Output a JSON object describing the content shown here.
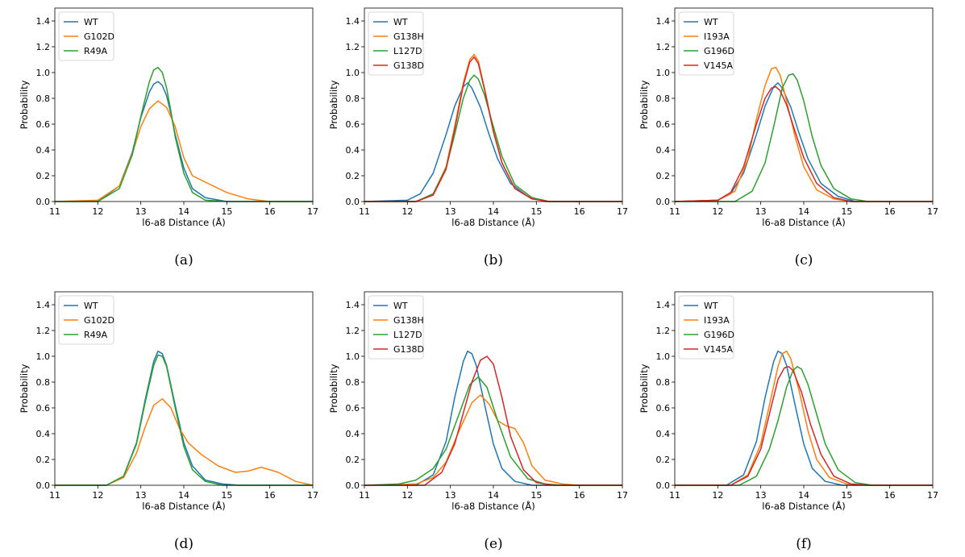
{
  "chart_data": [
    {
      "type": "line",
      "caption": "(a)",
      "xlabel": "l6-a8 Distance (Å)",
      "ylabel": "Probability",
      "xlim": [
        11,
        17
      ],
      "ylim": [
        0,
        1.5
      ],
      "xticks": [
        "11",
        "12",
        "13",
        "14",
        "15",
        "16",
        "17"
      ],
      "yticks": [
        "0.0",
        "0.2",
        "0.4",
        "0.6",
        "0.8",
        "1.0",
        "1.2",
        "1.4"
      ],
      "legend_position": "top-left",
      "series": [
        {
          "name": "WT",
          "color": "#1f77b4",
          "x": [
            11,
            12,
            12.5,
            12.8,
            13.0,
            13.2,
            13.3,
            13.4,
            13.5,
            13.6,
            13.7,
            13.8,
            14.0,
            14.2,
            14.5,
            15.0,
            17
          ],
          "y": [
            0,
            0.0,
            0.12,
            0.38,
            0.65,
            0.85,
            0.91,
            0.93,
            0.9,
            0.82,
            0.68,
            0.52,
            0.26,
            0.1,
            0.03,
            0.0,
            0
          ]
        },
        {
          "name": "G102D",
          "color": "#ff7f0e",
          "x": [
            11,
            12,
            12.5,
            12.8,
            13.0,
            13.2,
            13.4,
            13.6,
            13.8,
            14.0,
            14.2,
            14.5,
            15.0,
            15.5,
            16,
            17
          ],
          "y": [
            0,
            0.01,
            0.12,
            0.37,
            0.58,
            0.72,
            0.78,
            0.73,
            0.58,
            0.34,
            0.2,
            0.15,
            0.07,
            0.02,
            0.0,
            0
          ]
        },
        {
          "name": "R49A",
          "color": "#2ca02c",
          "x": [
            11,
            12,
            12.5,
            12.8,
            13.0,
            13.2,
            13.3,
            13.4,
            13.5,
            13.6,
            13.7,
            13.8,
            14.0,
            14.2,
            14.5,
            15.0,
            17
          ],
          "y": [
            0,
            0.0,
            0.1,
            0.36,
            0.66,
            0.93,
            1.02,
            1.04,
            1.0,
            0.88,
            0.7,
            0.5,
            0.22,
            0.07,
            0.01,
            0.0,
            0
          ]
        }
      ]
    },
    {
      "type": "line",
      "caption": "(b)",
      "xlabel": "l6-a8 Distance (Å)",
      "ylabel": "Probability",
      "xlim": [
        11,
        17
      ],
      "ylim": [
        0,
        1.5
      ],
      "xticks": [
        "11",
        "12",
        "13",
        "14",
        "15",
        "16",
        "17"
      ],
      "yticks": [
        "0.0",
        "0.2",
        "0.4",
        "0.6",
        "0.8",
        "1.0",
        "1.2",
        "1.4"
      ],
      "legend_position": "top-left",
      "series": [
        {
          "name": "WT",
          "color": "#1f77b4",
          "x": [
            11,
            12,
            12.3,
            12.6,
            12.9,
            13.1,
            13.3,
            13.4,
            13.5,
            13.7,
            13.9,
            14.1,
            14.4,
            14.8,
            15.2,
            17
          ],
          "y": [
            0,
            0.01,
            0.06,
            0.22,
            0.52,
            0.74,
            0.89,
            0.92,
            0.88,
            0.73,
            0.52,
            0.33,
            0.14,
            0.04,
            0.0,
            0
          ]
        },
        {
          "name": "G138H",
          "color": "#ff7f0e",
          "x": [
            11,
            12.2,
            12.6,
            12.9,
            13.1,
            13.3,
            13.45,
            13.55,
            13.65,
            13.8,
            14.0,
            14.2,
            14.5,
            14.9,
            15.3,
            17
          ],
          "y": [
            0,
            0.0,
            0.06,
            0.27,
            0.58,
            0.92,
            1.1,
            1.14,
            1.09,
            0.87,
            0.55,
            0.3,
            0.1,
            0.02,
            0.0,
            0
          ]
        },
        {
          "name": "L127D",
          "color": "#2ca02c",
          "x": [
            11,
            12.2,
            12.6,
            12.9,
            13.1,
            13.3,
            13.45,
            13.55,
            13.65,
            13.8,
            14.0,
            14.2,
            14.5,
            14.9,
            15.3,
            17
          ],
          "y": [
            0,
            0.0,
            0.06,
            0.26,
            0.52,
            0.8,
            0.94,
            0.98,
            0.95,
            0.82,
            0.58,
            0.35,
            0.13,
            0.03,
            0.0,
            0
          ]
        },
        {
          "name": "G138D",
          "color": "#d62728",
          "x": [
            11,
            12.2,
            12.6,
            12.9,
            13.1,
            13.3,
            13.45,
            13.55,
            13.65,
            13.8,
            14.0,
            14.2,
            14.5,
            14.9,
            15.3,
            17
          ],
          "y": [
            0,
            0.0,
            0.05,
            0.25,
            0.56,
            0.9,
            1.08,
            1.12,
            1.07,
            0.86,
            0.54,
            0.3,
            0.1,
            0.02,
            0.0,
            0
          ]
        }
      ]
    },
    {
      "type": "line",
      "caption": "(c)",
      "xlabel": "l6-a8 Distance (Å)",
      "ylabel": "Probability",
      "xlim": [
        11,
        17
      ],
      "ylim": [
        0,
        1.5
      ],
      "xticks": [
        "11",
        "12",
        "13",
        "14",
        "15",
        "16",
        "17"
      ],
      "yticks": [
        "0.0",
        "0.2",
        "0.4",
        "0.6",
        "0.8",
        "1.0",
        "1.2",
        "1.4"
      ],
      "legend_position": "top-left",
      "series": [
        {
          "name": "WT",
          "color": "#1f77b4",
          "x": [
            11,
            12,
            12.3,
            12.6,
            12.9,
            13.1,
            13.3,
            13.4,
            13.5,
            13.7,
            13.9,
            14.1,
            14.4,
            14.8,
            15.2,
            17
          ],
          "y": [
            0,
            0.01,
            0.06,
            0.22,
            0.52,
            0.74,
            0.89,
            0.92,
            0.88,
            0.73,
            0.52,
            0.33,
            0.14,
            0.04,
            0.0,
            0
          ]
        },
        {
          "name": "I193A",
          "color": "#ff7f0e",
          "x": [
            11,
            12,
            12.4,
            12.7,
            12.9,
            13.1,
            13.25,
            13.35,
            13.45,
            13.6,
            13.8,
            14.0,
            14.3,
            14.7,
            15.1,
            17
          ],
          "y": [
            0,
            0.01,
            0.08,
            0.33,
            0.64,
            0.9,
            1.03,
            1.04,
            0.98,
            0.78,
            0.5,
            0.27,
            0.09,
            0.02,
            0.0,
            0
          ]
        },
        {
          "name": "G196D",
          "color": "#2ca02c",
          "x": [
            11,
            12.4,
            12.8,
            13.1,
            13.3,
            13.5,
            13.65,
            13.75,
            13.85,
            14.0,
            14.2,
            14.4,
            14.7,
            15.1,
            15.5,
            17
          ],
          "y": [
            0,
            0.0,
            0.08,
            0.3,
            0.58,
            0.88,
            0.98,
            0.99,
            0.94,
            0.78,
            0.5,
            0.28,
            0.1,
            0.02,
            0.0,
            0
          ]
        },
        {
          "name": "V145A",
          "color": "#d62728",
          "x": [
            11,
            12,
            12.3,
            12.6,
            12.9,
            13.1,
            13.25,
            13.35,
            13.45,
            13.6,
            13.8,
            14.0,
            14.3,
            14.7,
            15.1,
            17
          ],
          "y": [
            0,
            0.01,
            0.07,
            0.27,
            0.6,
            0.8,
            0.88,
            0.89,
            0.86,
            0.75,
            0.54,
            0.34,
            0.14,
            0.03,
            0.0,
            0
          ]
        }
      ]
    },
    {
      "type": "line",
      "caption": "(d)",
      "xlabel": "l6-a8 Distance (Å)",
      "ylabel": "Probability",
      "xlim": [
        11,
        17
      ],
      "ylim": [
        0,
        1.5
      ],
      "xticks": [
        "11",
        "12",
        "13",
        "14",
        "15",
        "16",
        "17"
      ],
      "yticks": [
        "0.0",
        "0.2",
        "0.4",
        "0.6",
        "0.8",
        "1.0",
        "1.2",
        "1.4"
      ],
      "legend_position": "top-left",
      "series": [
        {
          "name": "WT",
          "color": "#1f77b4",
          "x": [
            11,
            12.2,
            12.6,
            12.9,
            13.1,
            13.3,
            13.4,
            13.5,
            13.6,
            13.8,
            14.0,
            14.2,
            14.5,
            14.9,
            15.3,
            17
          ],
          "y": [
            0,
            0.0,
            0.07,
            0.33,
            0.66,
            0.96,
            1.04,
            1.02,
            0.93,
            0.62,
            0.33,
            0.15,
            0.04,
            0.01,
            0.0,
            0
          ]
        },
        {
          "name": "G102D",
          "color": "#ff7f0e",
          "x": [
            11,
            12.2,
            12.6,
            12.9,
            13.1,
            13.3,
            13.5,
            13.7,
            13.9,
            14.1,
            14.4,
            14.8,
            15.2,
            15.5,
            15.8,
            16.2,
            16.6,
            17
          ],
          "y": [
            0,
            0.0,
            0.06,
            0.25,
            0.45,
            0.62,
            0.67,
            0.6,
            0.44,
            0.33,
            0.24,
            0.15,
            0.1,
            0.11,
            0.14,
            0.1,
            0.03,
            0.0
          ]
        },
        {
          "name": "R49A",
          "color": "#2ca02c",
          "x": [
            11,
            12.2,
            12.6,
            12.9,
            13.1,
            13.3,
            13.4,
            13.5,
            13.6,
            13.8,
            14.0,
            14.2,
            14.5,
            14.9,
            15.3,
            17
          ],
          "y": [
            0,
            0.0,
            0.07,
            0.32,
            0.64,
            0.93,
            1.01,
            1.0,
            0.92,
            0.6,
            0.3,
            0.12,
            0.03,
            0.0,
            0.0,
            0
          ]
        }
      ]
    },
    {
      "type": "line",
      "caption": "(e)",
      "xlabel": "l6-a8 Distance (Å)",
      "ylabel": "Probability",
      "xlim": [
        11,
        17
      ],
      "ylim": [
        0,
        1.5
      ],
      "xticks": [
        "11",
        "12",
        "13",
        "14",
        "15",
        "16",
        "17"
      ],
      "yticks": [
        "0.0",
        "0.2",
        "0.4",
        "0.6",
        "0.8",
        "1.0",
        "1.2",
        "1.4"
      ],
      "legend_position": "top-left",
      "series": [
        {
          "name": "WT",
          "color": "#1f77b4",
          "x": [
            11,
            12.2,
            12.6,
            12.9,
            13.1,
            13.3,
            13.4,
            13.5,
            13.6,
            13.8,
            14.0,
            14.2,
            14.5,
            14.9,
            15.3,
            17
          ],
          "y": [
            0,
            0.0,
            0.08,
            0.34,
            0.68,
            0.96,
            1.04,
            1.02,
            0.93,
            0.62,
            0.32,
            0.13,
            0.03,
            0.0,
            0.0,
            0
          ]
        },
        {
          "name": "G138H",
          "color": "#ff7f0e",
          "x": [
            11,
            12.2,
            12.6,
            12.9,
            13.2,
            13.5,
            13.7,
            13.9,
            14.1,
            14.3,
            14.5,
            14.7,
            14.9,
            15.2,
            15.6,
            16,
            17
          ],
          "y": [
            0,
            0.01,
            0.06,
            0.18,
            0.42,
            0.64,
            0.7,
            0.63,
            0.5,
            0.46,
            0.44,
            0.33,
            0.15,
            0.04,
            0.01,
            0.0,
            0
          ]
        },
        {
          "name": "L127D",
          "color": "#2ca02c",
          "x": [
            11,
            11.8,
            12.2,
            12.6,
            12.9,
            13.2,
            13.45,
            13.65,
            13.85,
            14.1,
            14.4,
            14.8,
            15.2,
            15.6,
            17
          ],
          "y": [
            0,
            0.01,
            0.04,
            0.13,
            0.28,
            0.55,
            0.78,
            0.84,
            0.76,
            0.5,
            0.22,
            0.05,
            0.01,
            0.0,
            0
          ]
        },
        {
          "name": "G138D",
          "color": "#d62728",
          "x": [
            11,
            12.4,
            12.8,
            13.1,
            13.3,
            13.5,
            13.7,
            13.85,
            14.0,
            14.2,
            14.4,
            14.7,
            15.0,
            15.4,
            17
          ],
          "y": [
            0,
            0.0,
            0.1,
            0.32,
            0.56,
            0.8,
            0.97,
            1.0,
            0.94,
            0.68,
            0.38,
            0.12,
            0.02,
            0.0,
            0
          ]
        }
      ]
    },
    {
      "type": "line",
      "caption": "(f)",
      "xlabel": "l6-a8 Distance (Å)",
      "ylabel": "Probability",
      "xlim": [
        11,
        17
      ],
      "ylim": [
        0,
        1.5
      ],
      "xticks": [
        "11",
        "12",
        "13",
        "14",
        "15",
        "16",
        "17"
      ],
      "yticks": [
        "0.0",
        "0.2",
        "0.4",
        "0.6",
        "0.8",
        "1.0",
        "1.2",
        "1.4"
      ],
      "legend_position": "top-left",
      "series": [
        {
          "name": "WT",
          "color": "#1f77b4",
          "x": [
            11,
            12.2,
            12.6,
            12.9,
            13.1,
            13.3,
            13.4,
            13.5,
            13.6,
            13.8,
            14.0,
            14.2,
            14.5,
            14.9,
            15.3,
            17
          ],
          "y": [
            0,
            0.0,
            0.08,
            0.34,
            0.68,
            0.96,
            1.04,
            1.02,
            0.93,
            0.62,
            0.32,
            0.13,
            0.03,
            0.0,
            0.0,
            0
          ]
        },
        {
          "name": "I193A",
          "color": "#ff7f0e",
          "x": [
            11,
            12.3,
            12.7,
            13.0,
            13.2,
            13.4,
            13.5,
            13.6,
            13.7,
            13.9,
            14.1,
            14.3,
            14.6,
            15.0,
            15.4,
            17
          ],
          "y": [
            0,
            0.0,
            0.08,
            0.32,
            0.62,
            0.92,
            1.02,
            1.04,
            0.98,
            0.72,
            0.42,
            0.2,
            0.06,
            0.01,
            0.0,
            0
          ]
        },
        {
          "name": "G196D",
          "color": "#2ca02c",
          "x": [
            11,
            12.5,
            12.9,
            13.2,
            13.4,
            13.6,
            13.75,
            13.85,
            13.95,
            14.1,
            14.3,
            14.5,
            14.8,
            15.2,
            15.6,
            17
          ],
          "y": [
            0,
            0.0,
            0.07,
            0.28,
            0.5,
            0.76,
            0.89,
            0.92,
            0.9,
            0.78,
            0.55,
            0.32,
            0.12,
            0.02,
            0.0,
            0
          ]
        },
        {
          "name": "V145A",
          "color": "#d62728",
          "x": [
            11,
            12.3,
            12.7,
            13.0,
            13.2,
            13.4,
            13.55,
            13.65,
            13.75,
            13.95,
            14.15,
            14.4,
            14.7,
            15.1,
            15.5,
            17
          ],
          "y": [
            0,
            0.0,
            0.07,
            0.28,
            0.55,
            0.82,
            0.91,
            0.92,
            0.89,
            0.72,
            0.48,
            0.24,
            0.07,
            0.01,
            0.0,
            0
          ]
        }
      ]
    }
  ]
}
